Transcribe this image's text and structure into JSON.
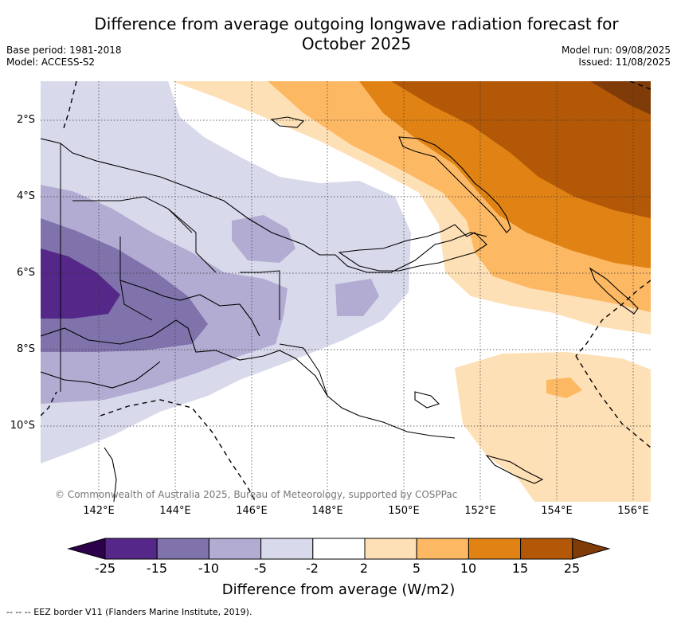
{
  "title_line1": "Difference from average outgoing longwave radiation forecast for",
  "title_line2": "October 2025",
  "base_period": "Base period: 1981-2018",
  "model": "Model: ACCESS-S2",
  "model_run": "Model run: 09/08/2025",
  "issued": "Issued: 11/08/2025",
  "copyright": "© Commonwealth of Australia 2025, Bureau of Meteorology, supported by COSPPac",
  "footer_note": "--  --  -- EEZ border V11 (Flanders Marine Institute, 2019).",
  "map": {
    "lat_labels": [
      "2°S",
      "4°S",
      "6°S",
      "8°S",
      "10°S"
    ],
    "lon_labels": [
      "142°E",
      "144°E",
      "146°E",
      "148°E",
      "150°E",
      "152°E",
      "154°E",
      "156°E"
    ]
  },
  "colorbar": {
    "label": "Difference from average (W/m2)",
    "ticks": [
      "-25",
      "-15",
      "-10",
      "-5",
      "-2",
      "2",
      "5",
      "10",
      "15",
      "25"
    ],
    "colors": [
      "#2d004b",
      "#542788",
      "#8073ac",
      "#b2abd2",
      "#d8daeb",
      "#ffffff",
      "#fee0b6",
      "#fdb863",
      "#e08214",
      "#b35806",
      "#7f3b08"
    ]
  }
}
